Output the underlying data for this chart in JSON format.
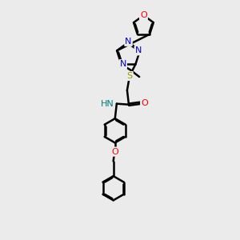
{
  "bg_color": "#ebebeb",
  "bond_color": "#000000",
  "N_color": "#0000cc",
  "O_color": "#ff0000",
  "S_color": "#999900",
  "C_color": "#000000",
  "line_width": 1.8,
  "font_size": 8,
  "fig_size": [
    3.0,
    3.0
  ],
  "dpi": 100,
  "xlim": [
    0,
    10
  ],
  "ylim": [
    0,
    14
  ]
}
